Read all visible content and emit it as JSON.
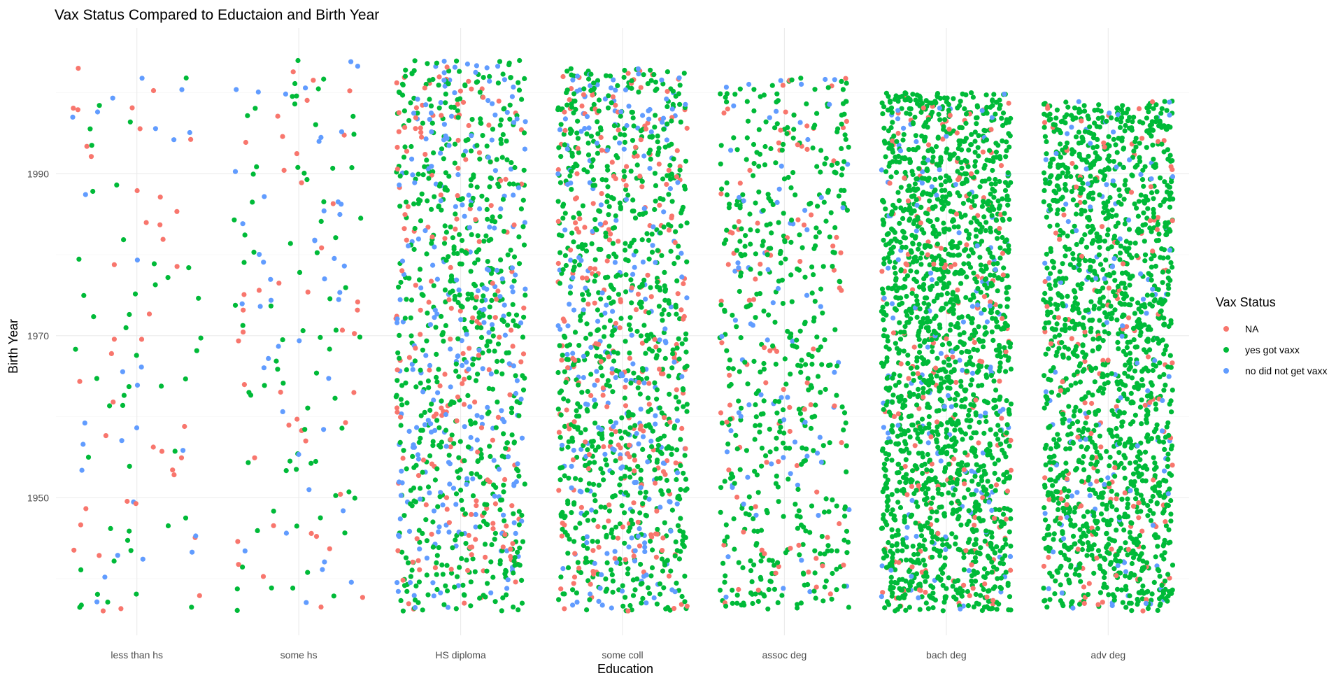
{
  "chart_data": {
    "type": "scatter",
    "title": "Vax Status Compared to Eductaion and Birth Year",
    "xlabel": "Education",
    "ylabel": "Birth Year",
    "x_type": "categorical-jitter",
    "categories": [
      "less than hs",
      "some hs",
      "HS diploma",
      "some coll",
      "assoc deg",
      "bach deg",
      "adv deg"
    ],
    "ylim": [
      1933,
      2008
    ],
    "yticks": [
      1950,
      1970,
      1990
    ],
    "grid": true,
    "legend": {
      "title": "Vax Status",
      "position": "right",
      "entries": [
        "NA",
        "yes got vaxx",
        "no did not get vaxx"
      ]
    },
    "series": [
      {
        "name": "NA",
        "color": "#F8766D",
        "approx_share": [
          0.33,
          0.33,
          0.18,
          0.17,
          0.15,
          0.1,
          0.09
        ]
      },
      {
        "name": "yes got vaxx",
        "color": "#00BA38",
        "approx_share": [
          0.4,
          0.4,
          0.55,
          0.63,
          0.7,
          0.83,
          0.84
        ]
      },
      {
        "name": "no did not get vaxx",
        "color": "#619CFF",
        "approx_share": [
          0.27,
          0.27,
          0.27,
          0.2,
          0.15,
          0.07,
          0.07
        ]
      }
    ],
    "approx_counts": [
      450,
      650,
      4200,
      5200,
      2600,
      8000,
      7000
    ],
    "approx_birth_year_range": [
      [
        1936,
        2004
      ],
      [
        1936,
        2004
      ],
      [
        1936,
        2004
      ],
      [
        1936,
        2003
      ],
      [
        1936,
        2002
      ],
      [
        1936,
        2000
      ],
      [
        1936,
        1999
      ]
    ]
  }
}
